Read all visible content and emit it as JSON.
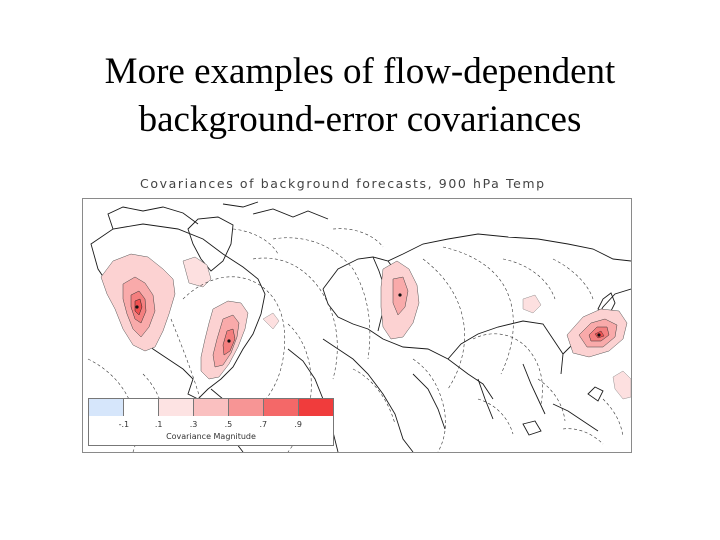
{
  "slide": {
    "title_line1": "More examples of flow-dependent",
    "title_line2": "background-error covariances"
  },
  "figure": {
    "title": "Covariances of background forecasts, 900 hPa Temp",
    "legend": {
      "label": "Covariance Magnitude",
      "ticks": [
        "-.1",
        ".1",
        ".3",
        ".5",
        ".7",
        ".9"
      ],
      "colors": [
        "#d6e6fb",
        "#ffffff",
        "#fde3e3",
        "#fac0c0",
        "#f79595",
        "#f46868",
        "#f03c3c"
      ]
    }
  }
}
